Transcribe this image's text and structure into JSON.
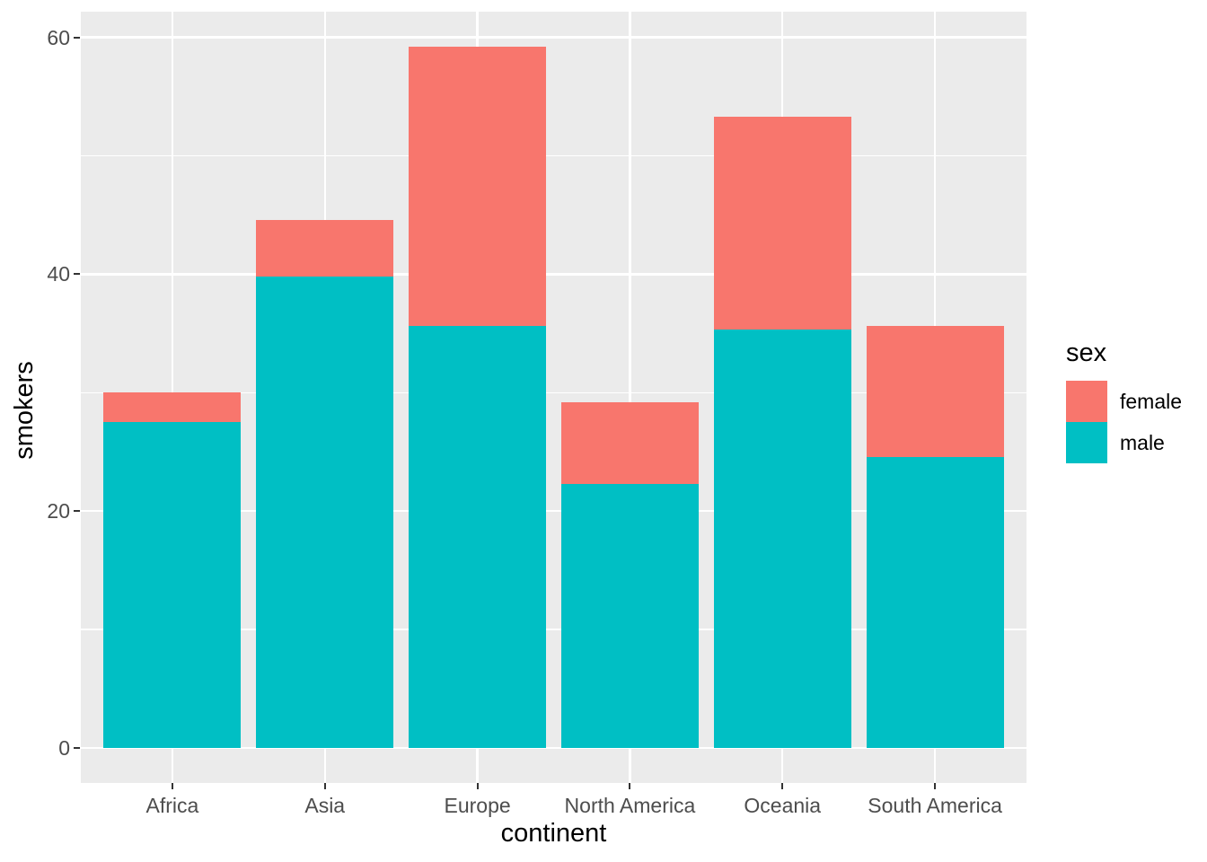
{
  "chart_data": {
    "type": "bar",
    "stacked": true,
    "title": "",
    "xlabel": "continent",
    "ylabel": "smokers",
    "categories": [
      "Africa",
      "Asia",
      "Europe",
      "North America",
      "Oceania",
      "South America"
    ],
    "series": [
      {
        "name": "male",
        "color": "#00BFC4",
        "values": [
          27.5,
          39.8,
          35.6,
          22.3,
          35.3,
          24.6
        ]
      },
      {
        "name": "female",
        "color": "#F8766D",
        "values": [
          2.5,
          4.8,
          23.6,
          6.9,
          18.0,
          11.0
        ]
      }
    ],
    "totals": [
      30.0,
      44.6,
      59.2,
      29.2,
      53.3,
      35.6
    ],
    "y_axis": {
      "ticks": [
        0,
        20,
        40,
        60
      ],
      "minor_ticks": [
        10,
        30,
        50
      ],
      "ylim": [
        0,
        62.2
      ]
    },
    "legend": {
      "title": "sex",
      "position": "right",
      "entries": [
        {
          "label": "female",
          "color": "#F8766D"
        },
        {
          "label": "male",
          "color": "#00BFC4"
        }
      ]
    },
    "style": {
      "panel_background": "#EBEBEB",
      "grid_color": "#FFFFFF",
      "tick_color": "#333333",
      "tick_label_color": "#4D4D4D",
      "title_color": "#000000"
    }
  }
}
